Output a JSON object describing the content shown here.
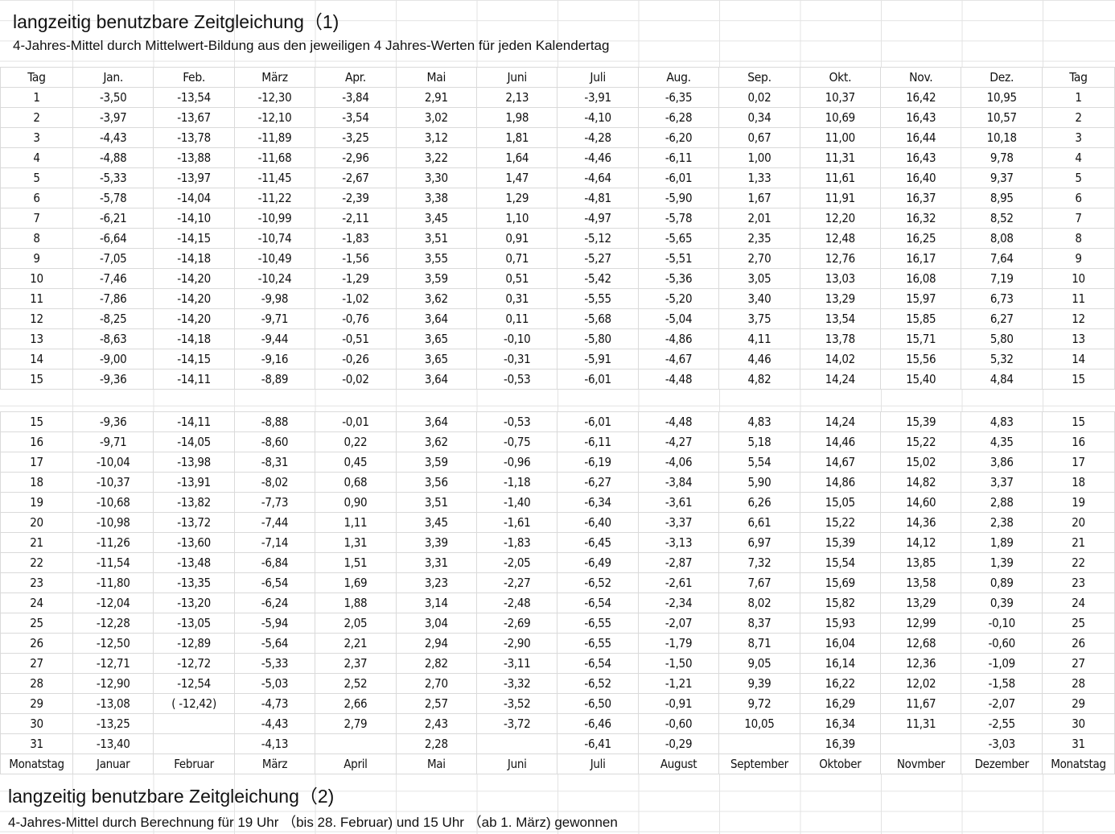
{
  "section1": {
    "title": "langzeitig benutzbare Zeitgleichung（1)",
    "subtitle": "4-Jahres-Mittel durch  Mittelwert-Bildung  aus den jeweiligen 4 Jahres-Werten für jeden Kalendertag",
    "headers": [
      "Tag",
      "Jan.",
      "Feb.",
      "März",
      "Apr.",
      "Mai",
      "Juni",
      "Juli",
      "Aug.",
      "Sep.",
      "Okt.",
      "Nov.",
      "Dez.",
      "Tag"
    ],
    "rows": [
      [
        "1",
        "-3,50",
        "-13,54",
        "-12,30",
        "-3,84",
        "2,91",
        "2,13",
        "-3,91",
        "-6,35",
        "0,02",
        "10,37",
        "16,42",
        "10,95",
        "1"
      ],
      [
        "2",
        "-3,97",
        "-13,67",
        "-12,10",
        "-3,54",
        "3,02",
        "1,98",
        "-4,10",
        "-6,28",
        "0,34",
        "10,69",
        "16,43",
        "10,57",
        "2"
      ],
      [
        "3",
        "-4,43",
        "-13,78",
        "-11,89",
        "-3,25",
        "3,12",
        "1,81",
        "-4,28",
        "-6,20",
        "0,67",
        "11,00",
        "16,44",
        "10,18",
        "3"
      ],
      [
        "4",
        "-4,88",
        "-13,88",
        "-11,68",
        "-2,96",
        "3,22",
        "1,64",
        "-4,46",
        "-6,11",
        "1,00",
        "11,31",
        "16,43",
        "9,78",
        "4"
      ],
      [
        "5",
        "-5,33",
        "-13,97",
        "-11,45",
        "-2,67",
        "3,30",
        "1,47",
        "-4,64",
        "-6,01",
        "1,33",
        "11,61",
        "16,40",
        "9,37",
        "5"
      ],
      [
        "6",
        "-5,78",
        "-14,04",
        "-11,22",
        "-2,39",
        "3,38",
        "1,29",
        "-4,81",
        "-5,90",
        "1,67",
        "11,91",
        "16,37",
        "8,95",
        "6"
      ],
      [
        "7",
        "-6,21",
        "-14,10",
        "-10,99",
        "-2,11",
        "3,45",
        "1,10",
        "-4,97",
        "-5,78",
        "2,01",
        "12,20",
        "16,32",
        "8,52",
        "7"
      ],
      [
        "8",
        "-6,64",
        "-14,15",
        "-10,74",
        "-1,83",
        "3,51",
        "0,91",
        "-5,12",
        "-5,65",
        "2,35",
        "12,48",
        "16,25",
        "8,08",
        "8"
      ],
      [
        "9",
        "-7,05",
        "-14,18",
        "-10,49",
        "-1,56",
        "3,55",
        "0,71",
        "-5,27",
        "-5,51",
        "2,70",
        "12,76",
        "16,17",
        "7,64",
        "9"
      ],
      [
        "10",
        "-7,46",
        "-14,20",
        "-10,24",
        "-1,29",
        "3,59",
        "0,51",
        "-5,42",
        "-5,36",
        "3,05",
        "13,03",
        "16,08",
        "7,19",
        "10"
      ],
      [
        "11",
        "-7,86",
        "-14,20",
        "-9,98",
        "-1,02",
        "3,62",
        "0,31",
        "-5,55",
        "-5,20",
        "3,40",
        "13,29",
        "15,97",
        "6,73",
        "11"
      ],
      [
        "12",
        "-8,25",
        "-14,20",
        "-9,71",
        "-0,76",
        "3,64",
        "0,11",
        "-5,68",
        "-5,04",
        "3,75",
        "13,54",
        "15,85",
        "6,27",
        "12"
      ],
      [
        "13",
        "-8,63",
        "-14,18",
        "-9,44",
        "-0,51",
        "3,65",
        "-0,10",
        "-5,80",
        "-4,86",
        "4,11",
        "13,78",
        "15,71",
        "5,80",
        "13"
      ],
      [
        "14",
        "-9,00",
        "-14,15",
        "-9,16",
        "-0,26",
        "3,65",
        "-0,31",
        "-5,91",
        "-4,67",
        "4,46",
        "14,02",
        "15,56",
        "5,32",
        "14"
      ],
      [
        "15",
        "-9,36",
        "-14,11",
        "-8,89",
        "-0,02",
        "3,64",
        "-0,53",
        "-6,01",
        "-4,48",
        "4,82",
        "14,24",
        "15,40",
        "4,84",
        "15"
      ]
    ]
  },
  "section2": {
    "rows": [
      [
        "15",
        "-9,36",
        "-14,11",
        "-8,88",
        "-0,01",
        "3,64",
        "-0,53",
        "-6,01",
        "-4,48",
        "4,83",
        "14,24",
        "15,39",
        "4,83",
        "15"
      ],
      [
        "16",
        "-9,71",
        "-14,05",
        "-8,60",
        "0,22",
        "3,62",
        "-0,75",
        "-6,11",
        "-4,27",
        "5,18",
        "14,46",
        "15,22",
        "4,35",
        "16"
      ],
      [
        "17",
        "-10,04",
        "-13,98",
        "-8,31",
        "0,45",
        "3,59",
        "-0,96",
        "-6,19",
        "-4,06",
        "5,54",
        "14,67",
        "15,02",
        "3,86",
        "17"
      ],
      [
        "18",
        "-10,37",
        "-13,91",
        "-8,02",
        "0,68",
        "3,56",
        "-1,18",
        "-6,27",
        "-3,84",
        "5,90",
        "14,86",
        "14,82",
        "3,37",
        "18"
      ],
      [
        "19",
        "-10,68",
        "-13,82",
        "-7,73",
        "0,90",
        "3,51",
        "-1,40",
        "-6,34",
        "-3,61",
        "6,26",
        "15,05",
        "14,60",
        "2,88",
        "19"
      ],
      [
        "20",
        "-10,98",
        "-13,72",
        "-7,44",
        "1,11",
        "3,45",
        "-1,61",
        "-6,40",
        "-3,37",
        "6,61",
        "15,22",
        "14,36",
        "2,38",
        "20"
      ],
      [
        "21",
        "-11,26",
        "-13,60",
        "-7,14",
        "1,31",
        "3,39",
        "-1,83",
        "-6,45",
        "-3,13",
        "6,97",
        "15,39",
        "14,12",
        "1,89",
        "21"
      ],
      [
        "22",
        "-11,54",
        "-13,48",
        "-6,84",
        "1,51",
        "3,31",
        "-2,05",
        "-6,49",
        "-2,87",
        "7,32",
        "15,54",
        "13,85",
        "1,39",
        "22"
      ],
      [
        "23",
        "-11,80",
        "-13,35",
        "-6,54",
        "1,69",
        "3,23",
        "-2,27",
        "-6,52",
        "-2,61",
        "7,67",
        "15,69",
        "13,58",
        "0,89",
        "23"
      ],
      [
        "24",
        "-12,04",
        "-13,20",
        "-6,24",
        "1,88",
        "3,14",
        "-2,48",
        "-6,54",
        "-2,34",
        "8,02",
        "15,82",
        "13,29",
        "0,39",
        "24"
      ],
      [
        "25",
        "-12,28",
        "-13,05",
        "-5,94",
        "2,05",
        "3,04",
        "-2,69",
        "-6,55",
        "-2,07",
        "8,37",
        "15,93",
        "12,99",
        "-0,10",
        "25"
      ],
      [
        "26",
        "-12,50",
        "-12,89",
        "-5,64",
        "2,21",
        "2,94",
        "-2,90",
        "-6,55",
        "-1,79",
        "8,71",
        "16,04",
        "12,68",
        "-0,60",
        "26"
      ],
      [
        "27",
        "-12,71",
        "-12,72",
        "-5,33",
        "2,37",
        "2,82",
        "-3,11",
        "-6,54",
        "-1,50",
        "9,05",
        "16,14",
        "12,36",
        "-1,09",
        "27"
      ],
      [
        "28",
        "-12,90",
        "-12,54",
        "-5,03",
        "2,52",
        "2,70",
        "-3,32",
        "-6,52",
        "-1,21",
        "9,39",
        "16,22",
        "12,02",
        "-1,58",
        "28"
      ],
      [
        "29",
        "-13,08",
        "( -12,42)",
        "-4,73",
        "2,66",
        "2,57",
        "-3,52",
        "-6,50",
        "-0,91",
        "9,72",
        "16,29",
        "11,67",
        "-2,07",
        "29"
      ],
      [
        "30",
        "-13,25",
        "",
        "-4,43",
        "2,79",
        "2,43",
        "-3,72",
        "-6,46",
        "-0,60",
        "10,05",
        "16,34",
        "11,31",
        "-2,55",
        "30"
      ],
      [
        "31",
        "-13,40",
        "",
        "-4,13",
        "",
        "2,28",
        "",
        "-6,41",
        "-0,29",
        "",
        "16,39",
        "",
        "-3,03",
        "31"
      ]
    ],
    "footer": [
      "Monatstag",
      "Januar",
      "Februar",
      "März",
      "April",
      "Mai",
      "Juni",
      "Juli",
      "August",
      "September",
      "Oktober",
      "Novmber",
      "Dezember",
      "Monatstag"
    ],
    "title": "langzeitig benutzbare Zeitgleichung（2)",
    "subtitle": "4-Jahres-Mittel durch Berechnung für 19 Uhr （bis 28. Februar)  und 15 Uhr  （ab 1. März)  gewonnen"
  }
}
